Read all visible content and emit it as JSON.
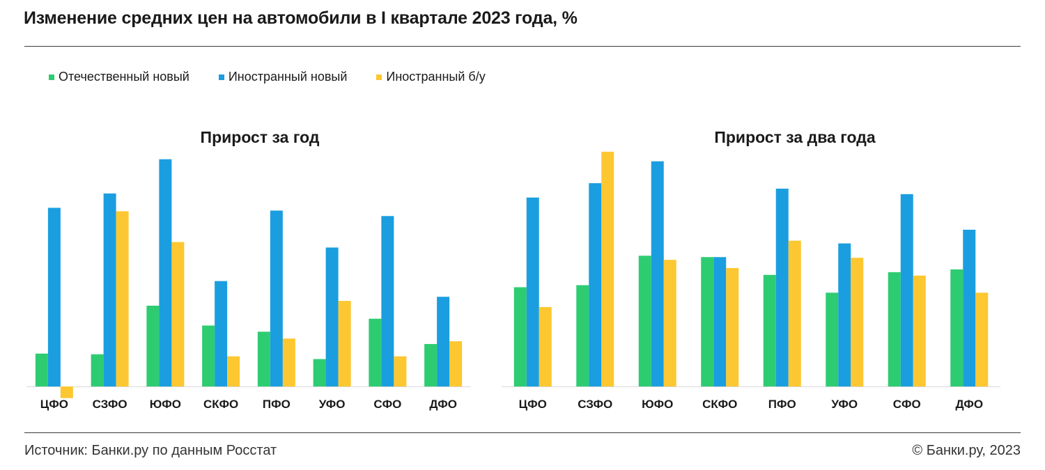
{
  "header": {
    "title": "Изменение средних цен на автомобили в I квартале 2023 года, %"
  },
  "legend": [
    {
      "label": "Отечественный новый",
      "color": "#2ecc71"
    },
    {
      "label": "Иностранный новый",
      "color": "#1a9ee0"
    },
    {
      "label": "Иностранный б/у",
      "color": "#fdc731"
    }
  ],
  "footer": {
    "source": "Источник: Банки.ру по данным Росстат",
    "copyright": "© Банки.ру, 2023"
  },
  "chart_data": [
    {
      "type": "bar",
      "title": "Прирост за год",
      "categories": [
        "ЦФО",
        "СЗФО",
        "ЮФО",
        "СКФО",
        "ПФО",
        "УФО",
        "СФО",
        "ДФО"
      ],
      "series": [
        {
          "name": "Отечественный новый",
          "color": "#2ecc71",
          "values": [
            4.8,
            4.7,
            11.8,
            8.9,
            8.0,
            4.0,
            9.9,
            6.2
          ]
        },
        {
          "name": "Иностранный новый",
          "color": "#1a9ee0",
          "values": [
            26.1,
            28.2,
            33.2,
            15.4,
            25.7,
            20.3,
            24.9,
            13.1
          ]
        },
        {
          "name": "Иностранный б/у",
          "color": "#fdc731",
          "values": [
            -1.7,
            25.6,
            21.1,
            4.4,
            7.0,
            12.5,
            4.4,
            6.6
          ]
        }
      ],
      "ylim": [
        -3,
        35
      ],
      "xlabel": "",
      "ylabel": ""
    },
    {
      "type": "bar",
      "title": "Прирост за два года",
      "categories": [
        "ЦФО",
        "СЗФО",
        "ЮФО",
        "СКФО",
        "ПФО",
        "УФО",
        "СФО",
        "ДФО"
      ],
      "series": [
        {
          "name": "Отечественный новый",
          "color": "#2ecc71",
          "values": [
            14.5,
            14.8,
            19.1,
            18.9,
            16.3,
            13.7,
            16.7,
            17.1
          ]
        },
        {
          "name": "Иностранный новый",
          "color": "#1a9ee0",
          "values": [
            27.6,
            29.7,
            32.9,
            18.9,
            28.9,
            20.9,
            28.1,
            22.9
          ]
        },
        {
          "name": "Иностранный б/у",
          "color": "#fdc731",
          "values": [
            11.6,
            34.3,
            18.5,
            17.3,
            21.3,
            18.8,
            16.2,
            13.7
          ]
        }
      ],
      "ylim": [
        -3,
        35
      ],
      "xlabel": "",
      "ylabel": ""
    }
  ]
}
